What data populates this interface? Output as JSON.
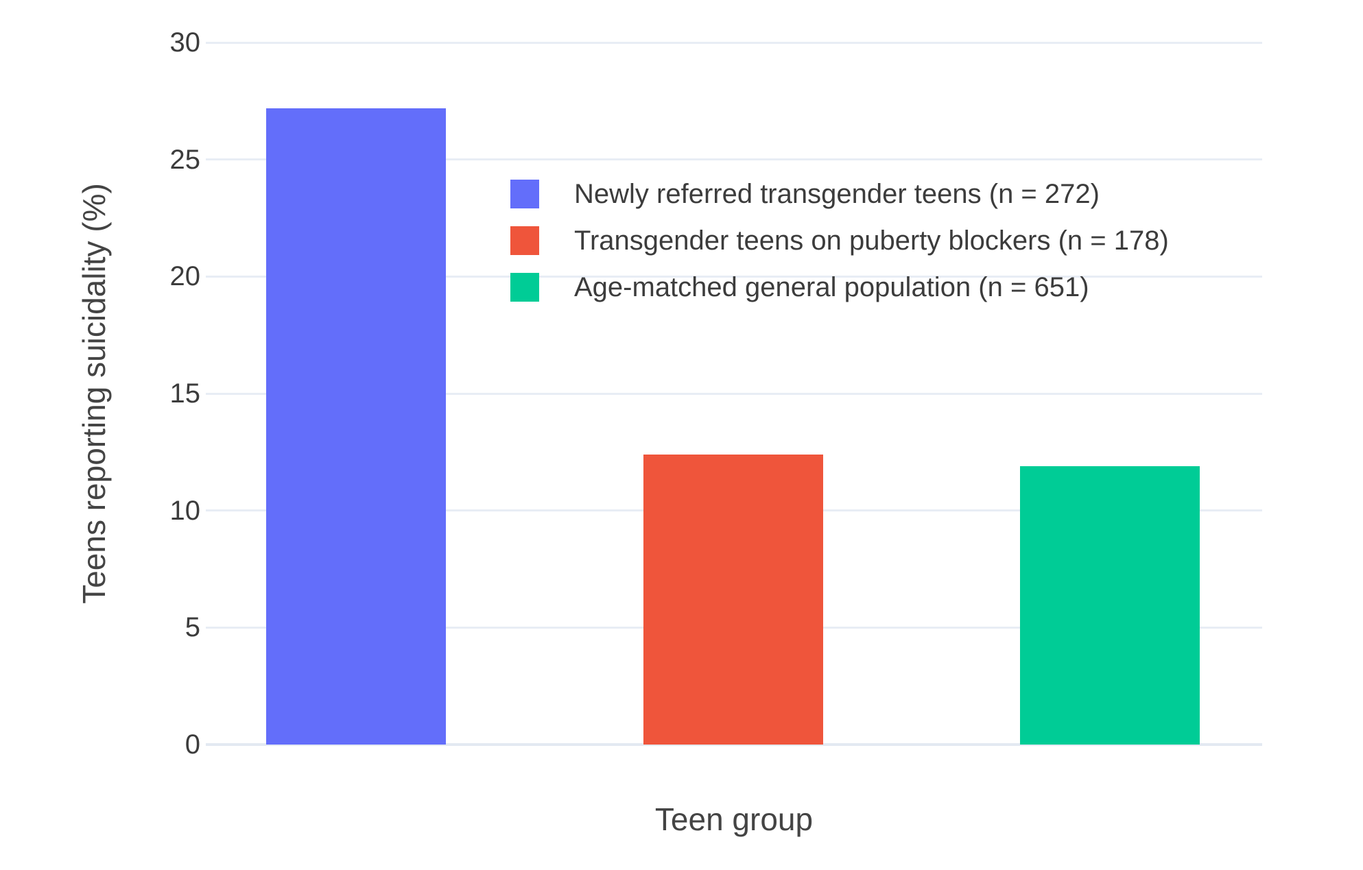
{
  "chart_data": {
    "type": "bar",
    "title": "",
    "xlabel": "Teen group",
    "ylabel": "Teens reporting suicidality (%)",
    "ylim": [
      0,
      30
    ],
    "yticks": [
      0,
      5,
      10,
      15,
      20,
      25,
      30
    ],
    "grid": true,
    "legend_position": "inside-top-right",
    "series": [
      {
        "key": "newly-referred",
        "name": "Newly referred transgender teens (n = 272)",
        "value": 27.2,
        "color": "#636EFA"
      },
      {
        "key": "puberty-blockers",
        "name": "Transgender teens on puberty blockers (n = 178)",
        "value": 12.4,
        "color": "#EF553B"
      },
      {
        "key": "general-population",
        "name": "Age-matched general population (n = 651)",
        "value": 11.9,
        "color": "#00CC96"
      }
    ]
  },
  "colors": {
    "background": "#FFFFFF",
    "gridline": "#E8EDF5",
    "zero_line": "#E3E9F2",
    "tick_text": "#3C3C3C",
    "title_text": "#444444"
  }
}
